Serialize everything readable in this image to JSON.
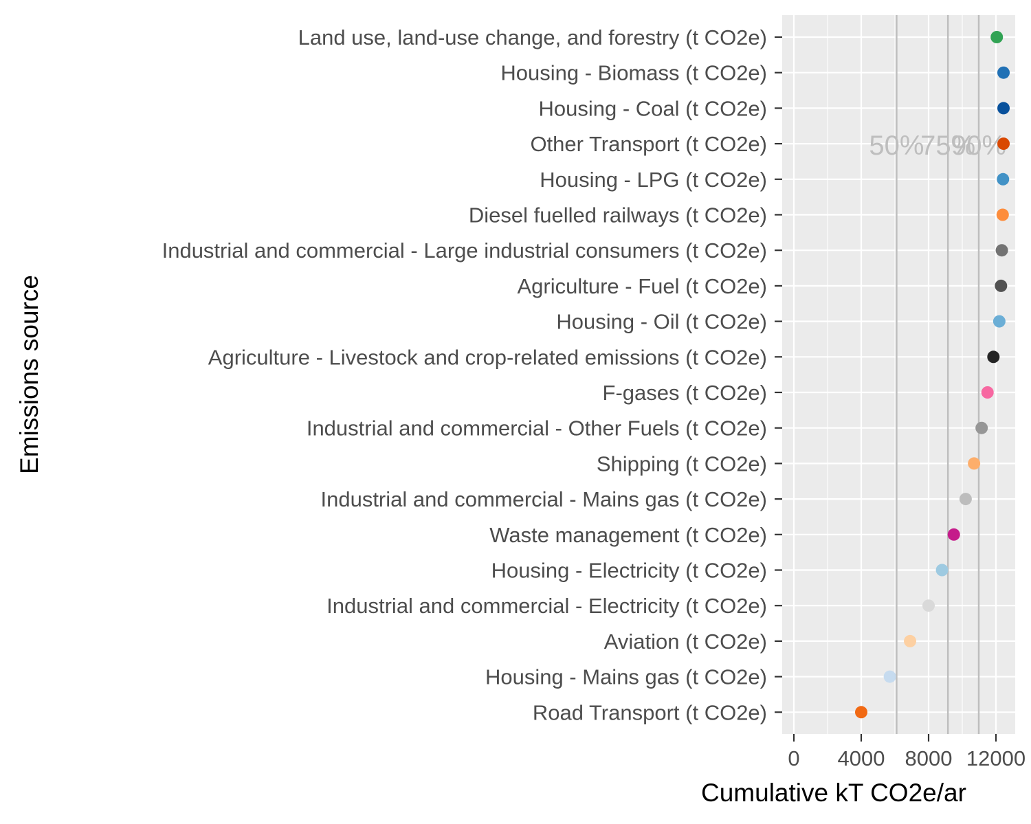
{
  "chart_data": {
    "type": "scatter",
    "xlabel": "Cumulative kT CO2e/ar",
    "ylabel": "Emissions source",
    "xlim": [
      -400,
      13000
    ],
    "x_ticks": [
      "0",
      "4000",
      "8000",
      "12000"
    ],
    "x_tick_values": [
      0,
      4000,
      8000,
      12000
    ],
    "grid": true,
    "legend": "none",
    "reference_lines": [
      {
        "label": "50%",
        "value": 6100
      },
      {
        "label": "75%",
        "value": 9150
      },
      {
        "label": "90%",
        "value": 10980
      }
    ],
    "points": [
      {
        "category": "Land use, land-use change, and forestry (t CO2e)",
        "value": 12050,
        "color": "#31a354"
      },
      {
        "category": "Housing - Biomass (t CO2e)",
        "value": 12450,
        "color": "#2171b5"
      },
      {
        "category": "Housing - Coal (t CO2e)",
        "value": 12450,
        "color": "#08519c"
      },
      {
        "category": "Other Transport (t CO2e)",
        "value": 12450,
        "color": "#d94801"
      },
      {
        "category": "Housing - LPG (t CO2e)",
        "value": 12420,
        "color": "#4292c6"
      },
      {
        "category": "Diesel fuelled railways (t CO2e)",
        "value": 12400,
        "color": "#fd8d3c"
      },
      {
        "category": "Industrial and commercial - Large industrial consumers (t CO2e)",
        "value": 12350,
        "color": "#737373"
      },
      {
        "category": "Agriculture - Fuel (t CO2e)",
        "value": 12300,
        "color": "#525252"
      },
      {
        "category": "Housing - Oil (t CO2e)",
        "value": 12200,
        "color": "#6baed6"
      },
      {
        "category": "Agriculture - Livestock and crop-related emissions (t CO2e)",
        "value": 11850,
        "color": "#252525"
      },
      {
        "category": "F-gases (t CO2e)",
        "value": 11500,
        "color": "#f768a1"
      },
      {
        "category": "Industrial and commercial - Other Fuels (t CO2e)",
        "value": 11150,
        "color": "#969696"
      },
      {
        "category": "Shipping (t CO2e)",
        "value": 10700,
        "color": "#fdae6b"
      },
      {
        "category": "Industrial and commercial - Mains gas (t CO2e)",
        "value": 10200,
        "color": "#bdbdbd"
      },
      {
        "category": "Waste management (t CO2e)",
        "value": 9500,
        "color": "#c51b8a"
      },
      {
        "category": "Housing - Electricity (t CO2e)",
        "value": 8800,
        "color": "#9ecae1"
      },
      {
        "category": "Industrial and commercial - Electricity (t CO2e)",
        "value": 8000,
        "color": "#d9d9d9"
      },
      {
        "category": "Aviation (t CO2e)",
        "value": 6900,
        "color": "#fdd0a2"
      },
      {
        "category": "Housing - Mains gas (t CO2e)",
        "value": 5700,
        "color": "#c6dbef"
      },
      {
        "category": "Road Transport (t CO2e)",
        "value": 4000,
        "color": "#f16913"
      }
    ],
    "colors": {
      "panel_background": "#ebebeb",
      "grid": "#ffffff",
      "reference_line": "#bebebe",
      "tick_text": "#4d4d4d"
    }
  }
}
